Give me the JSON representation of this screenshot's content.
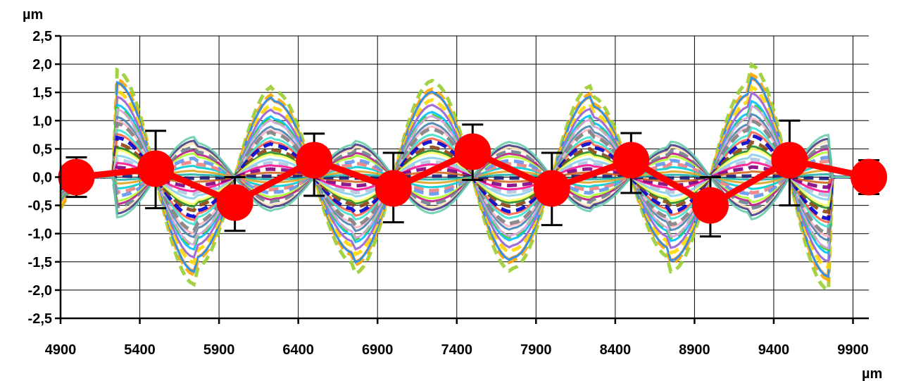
{
  "chart_data": {
    "type": "line",
    "y_unit": "µm",
    "x_unit": "µm",
    "xlim": [
      4900,
      10000
    ],
    "ylim": [
      -2.5,
      2.5
    ],
    "x_ticks": [
      4900,
      5400,
      5900,
      6400,
      6900,
      7400,
      7900,
      8400,
      8900,
      9400,
      9900
    ],
    "x_tick_labels": [
      "4900",
      "5400",
      "5900",
      "6400",
      "6900",
      "7400",
      "7900",
      "8400",
      "8900",
      "9400",
      "9900"
    ],
    "y_ticks": [
      2.5,
      2.0,
      1.5,
      1.0,
      0.5,
      0.0,
      -0.5,
      -1.0,
      -1.5,
      -2.0,
      -2.5
    ],
    "y_tick_labels": [
      "2,5",
      "2,0",
      "1,5",
      "1,0",
      "0,5",
      "0,0",
      "-0,5",
      "-1,0",
      "-1,5",
      "-2,0",
      "-2,5"
    ],
    "grid": true,
    "mean_series": {
      "color": "#ff0000",
      "x": [
        5000,
        5500,
        6000,
        6500,
        7000,
        7500,
        8000,
        8500,
        9000,
        9500,
        10000
      ],
      "y": [
        0.0,
        0.15,
        -0.45,
        0.3,
        -0.2,
        0.45,
        -0.2,
        0.3,
        -0.5,
        0.3,
        0.0
      ],
      "error_upper": [
        0.35,
        0.82,
        0.0,
        0.77,
        0.43,
        0.93,
        0.43,
        0.78,
        0.0,
        1.0,
        0.3
      ],
      "error_lower": [
        -0.35,
        -0.55,
        -0.95,
        -0.33,
        -0.8,
        -0.05,
        -0.85,
        -0.28,
        -1.05,
        -0.5,
        -0.3
      ]
    },
    "traces": {
      "x": [
        5000,
        5500,
        6000,
        6500,
        7000,
        7500,
        8000,
        8500,
        9000,
        9500,
        10000
      ],
      "node_offsets": [
        0.0,
        0.0,
        0.0,
        0.0,
        0.0,
        0.0,
        0.0,
        0.0,
        0.0,
        0.0,
        0.0
      ],
      "colors": [
        "#9acd32",
        "#ffa500",
        "#ff8c00",
        "#1e90ff",
        "#ffd700",
        "#ff69b4",
        "#9370db",
        "#00bfff",
        "#32cd32",
        "#dda0dd",
        "#4682b4",
        "#ffb6c1",
        "#808080",
        "#40e0d0",
        "#ff6347",
        "#0000cd",
        "#8b4513",
        "#228b22",
        "#ffff66",
        "#87ceeb",
        "#b0c4de",
        "#ff1493",
        "#800080",
        "#d2691e",
        "#191970",
        "#20b2aa",
        "#daa520",
        "#00ced1",
        "#f08080",
        "#6495ed",
        "#adff2f",
        "#c71585",
        "#708090",
        "#ffe4b5",
        "#483d8b",
        "#66cdaa"
      ],
      "amplitudes": [
        1.9,
        1.82,
        1.75,
        1.68,
        1.6,
        1.5,
        1.42,
        1.35,
        1.28,
        1.2,
        1.12,
        1.05,
        0.95,
        0.88,
        0.8,
        0.7,
        0.62,
        0.55,
        0.48,
        0.4,
        0.32,
        0.25,
        0.18,
        0.1,
        0.02,
        -0.05,
        -0.12,
        -0.2,
        -0.28,
        -0.35,
        -0.42,
        -0.5,
        -0.55,
        -0.6,
        -0.68,
        -0.75
      ]
    }
  }
}
